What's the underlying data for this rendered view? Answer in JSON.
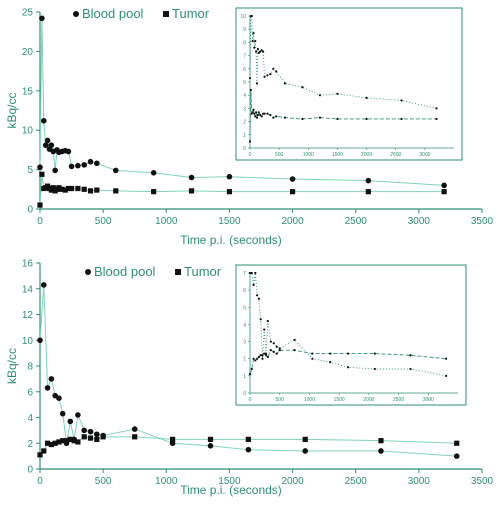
{
  "colors": {
    "axis": "#2f8f75",
    "line": "#7fd3b8",
    "marker": "#111111",
    "text": "#2f8f75",
    "background": "#ffffff"
  },
  "chart_data": [
    {
      "type": "line",
      "xlabel": "Time p.i. (seconds)",
      "ylabel": "kBq/cc",
      "xlim": [
        0,
        3500
      ],
      "ylim": [
        0,
        25
      ],
      "xticks": [
        0,
        500,
        1000,
        1500,
        2000,
        2500,
        3000,
        3500
      ],
      "yticks": [
        0,
        5,
        10,
        15,
        20,
        25
      ],
      "legend_position": "top-left",
      "series": [
        {
          "name": "Blood pool",
          "marker": "circle",
          "line_style": "solid",
          "x": [
            0,
            15,
            30,
            45,
            60,
            75,
            90,
            105,
            120,
            135,
            150,
            175,
            200,
            225,
            250,
            300,
            350,
            400,
            450,
            600,
            900,
            1200,
            1500,
            2000,
            2600,
            3200
          ],
          "y": [
            5.3,
            24.2,
            11.2,
            8.1,
            8.7,
            7.6,
            8.1,
            7.3,
            4.9,
            7.5,
            7.2,
            7.3,
            7.4,
            7.3,
            5.4,
            5.5,
            5.6,
            6.0,
            5.8,
            4.9,
            4.6,
            4.0,
            4.1,
            3.8,
            3.6,
            3.0
          ]
        },
        {
          "name": "Tumor",
          "marker": "square",
          "line_style": "solid",
          "x": [
            0,
            15,
            30,
            45,
            60,
            75,
            90,
            105,
            120,
            135,
            150,
            175,
            200,
            225,
            250,
            300,
            350,
            400,
            450,
            600,
            900,
            1200,
            1500,
            2000,
            2600,
            3200
          ],
          "y": [
            0.5,
            4.4,
            2.6,
            2.7,
            2.9,
            2.6,
            2.4,
            2.7,
            2.3,
            2.5,
            2.7,
            2.5,
            2.4,
            2.6,
            2.6,
            2.6,
            2.5,
            2.3,
            2.4,
            2.3,
            2.2,
            2.3,
            2.2,
            2.2,
            2.2,
            2.2
          ]
        }
      ],
      "inset": {
        "xlim": [
          0,
          3500
        ],
        "ylim": [
          0,
          10
        ],
        "xticks": [
          0,
          500,
          1000,
          1500,
          2000,
          2500,
          3000
        ],
        "yticks": [
          0,
          1,
          2,
          3,
          4,
          5,
          6,
          7,
          8,
          9,
          10
        ],
        "series_styles": [
          "dotted",
          "dashed"
        ]
      }
    },
    {
      "type": "line",
      "xlabel": "Time p.i. (seconds)",
      "ylabel": "kBq/cc",
      "xlim": [
        0,
        3500
      ],
      "ylim": [
        0,
        16
      ],
      "xticks": [
        0,
        500,
        1000,
        1500,
        2000,
        2500,
        3000,
        3500
      ],
      "yticks": [
        0,
        2,
        4,
        6,
        8,
        10,
        12,
        14,
        16
      ],
      "legend_position": "top-left",
      "series": [
        {
          "name": "Blood pool",
          "marker": "circle",
          "line_style": "solid",
          "x": [
            0,
            30,
            60,
            90,
            120,
            150,
            180,
            210,
            240,
            270,
            300,
            350,
            400,
            450,
            500,
            750,
            1050,
            1350,
            1650,
            2100,
            2700,
            3300
          ],
          "y": [
            10.0,
            14.3,
            6.3,
            7.0,
            5.7,
            5.5,
            4.3,
            2.0,
            3.7,
            2.3,
            4.2,
            3.0,
            2.9,
            2.7,
            2.6,
            3.1,
            2.0,
            1.8,
            1.5,
            1.4,
            1.4,
            1.0
          ]
        },
        {
          "name": "Tumor",
          "marker": "square",
          "line_style": "solid",
          "x": [
            0,
            30,
            60,
            90,
            120,
            150,
            180,
            210,
            240,
            270,
            300,
            350,
            400,
            450,
            500,
            750,
            1050,
            1350,
            1650,
            2100,
            2700,
            3300
          ],
          "y": [
            1.1,
            1.4,
            2.0,
            1.9,
            2.0,
            2.1,
            2.2,
            2.2,
            2.3,
            2.2,
            2.1,
            2.5,
            2.4,
            2.3,
            2.5,
            2.5,
            2.3,
            2.3,
            2.3,
            2.3,
            2.2,
            2.0
          ]
        }
      ],
      "inset": {
        "xlim": [
          0,
          3500
        ],
        "ylim": [
          0,
          7
        ],
        "xticks": [
          0,
          500,
          1000,
          1500,
          2000,
          2500,
          3000
        ],
        "yticks": [
          0,
          1,
          2,
          3,
          4,
          5,
          6,
          7
        ],
        "series_styles": [
          "dotted",
          "dashed"
        ]
      }
    }
  ]
}
